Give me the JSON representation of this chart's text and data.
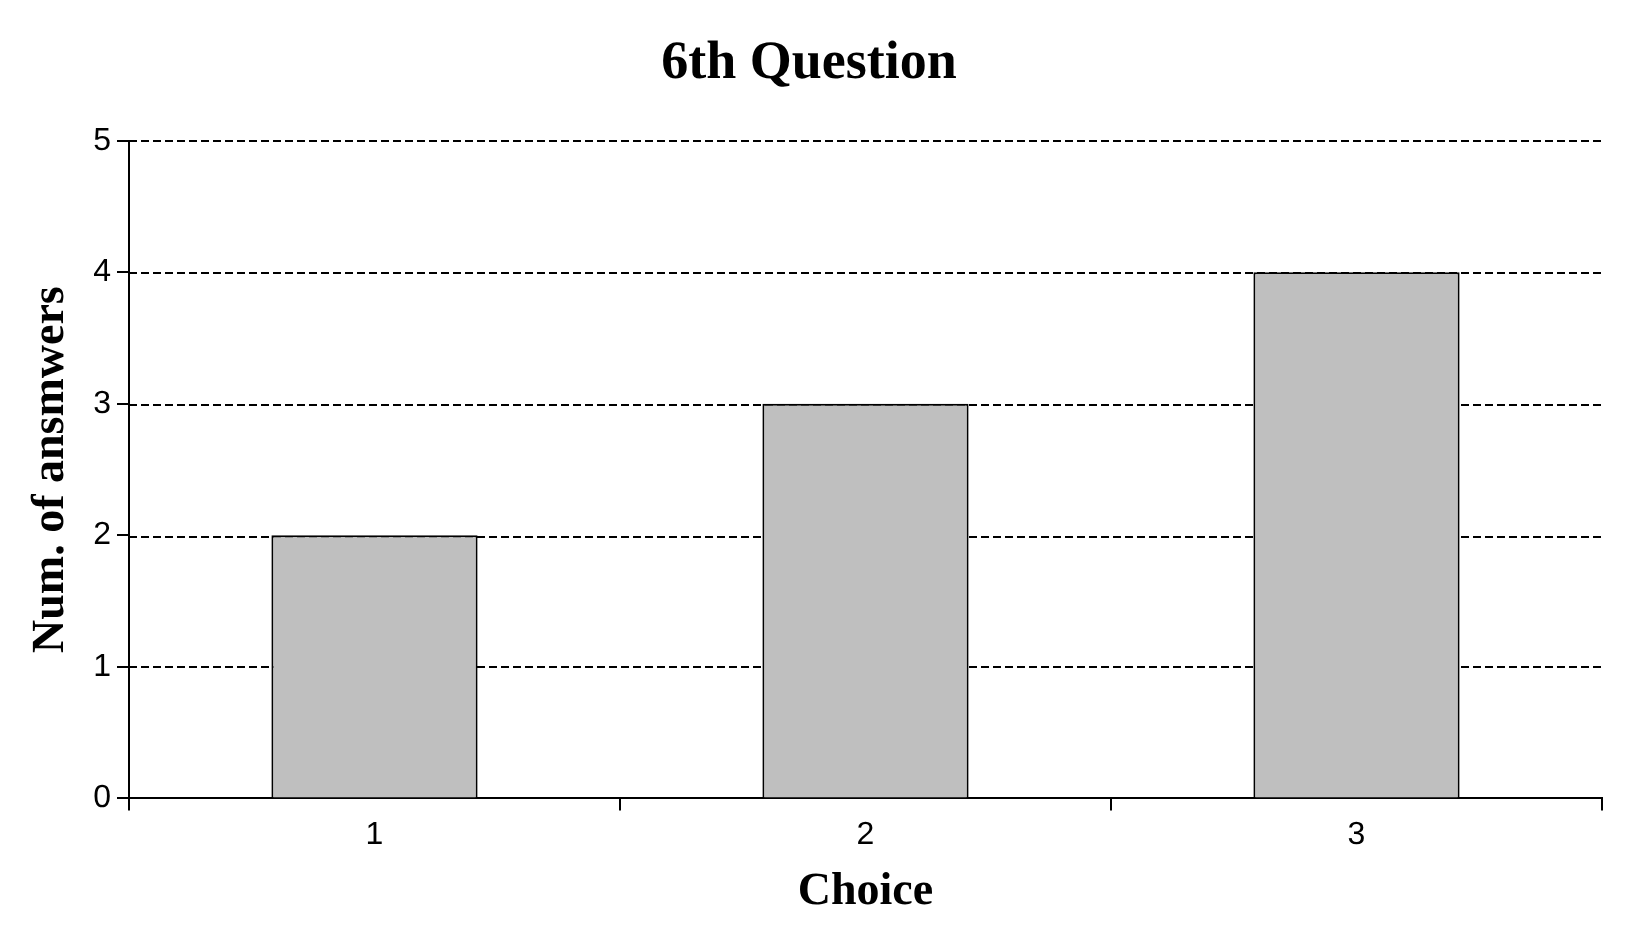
{
  "chart_data": {
    "type": "bar",
    "title": "6th Question",
    "xlabel": "Choice",
    "ylabel": "Num. of ansmwers",
    "categories": [
      "1",
      "2",
      "3"
    ],
    "values": [
      2,
      3,
      4
    ],
    "color": "#bfbfbf",
    "ylim": [
      0,
      5
    ],
    "yticks": [
      0,
      1,
      2,
      3,
      4,
      5
    ],
    "grid": "y",
    "legend": false
  }
}
